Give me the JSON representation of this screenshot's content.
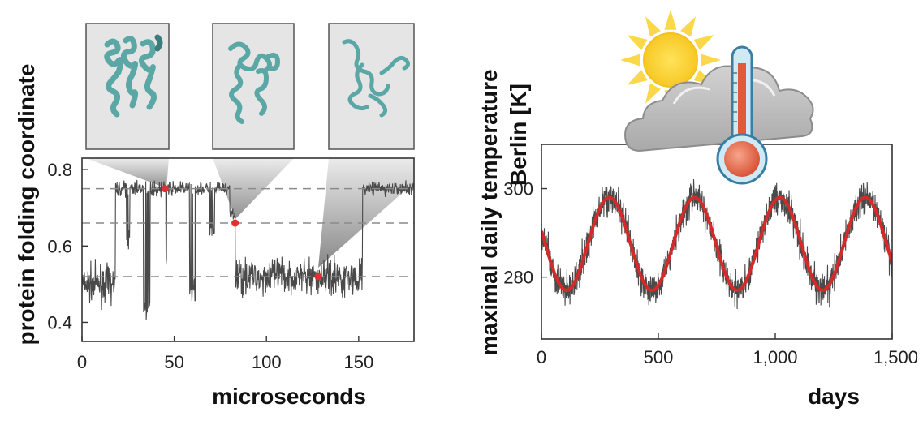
{
  "chart_data": [
    {
      "type": "line",
      "xlabel": "microseconds",
      "ylabel": "protein folding coordinate",
      "xlim": [
        0,
        180
      ],
      "ylim": [
        0.35,
        0.83
      ],
      "xticks": [
        "0",
        "50",
        "100",
        "150"
      ],
      "xtick_values": [
        0,
        50,
        100,
        150
      ],
      "yticks": [
        "0.4",
        "0.6",
        "0.8"
      ],
      "ytick_values": [
        0.4,
        0.6,
        0.8
      ],
      "reference_lines": [
        0.75,
        0.66,
        0.52
      ],
      "series": [
        {
          "color": "#4a4a4a",
          "segments": [
            {
              "x": [
                0,
                18
              ],
              "level": 0.5
            },
            {
              "x": [
                18,
                80
              ],
              "level": 0.75
            },
            {
              "x": [
                80,
                83
              ],
              "level": 0.68
            },
            {
              "x": [
                83,
                152
              ],
              "level": 0.52
            },
            {
              "x": [
                152,
                180
              ],
              "level": 0.75
            }
          ]
        }
      ],
      "highlight_points": [
        {
          "x": 45,
          "y": 0.75
        },
        {
          "x": 83,
          "y": 0.66
        },
        {
          "x": 128,
          "y": 0.52
        }
      ],
      "structure_images": 3,
      "grid": false
    },
    {
      "type": "line",
      "xlabel": "days",
      "ylabel": "maximal daily temperature Berlin [K]",
      "xlim": [
        0,
        1500
      ],
      "ylim": [
        266,
        310
      ],
      "xticks": [
        "0",
        "500",
        "1,000",
        "1,500"
      ],
      "xtick_values": [
        0,
        500,
        1000,
        1500
      ],
      "yticks": [
        "280",
        "300"
      ],
      "ytick_values": [
        280,
        300
      ],
      "series": [
        {
          "kind": "noisy daily measurement",
          "color": "#4a4a4a",
          "mean": 287.5,
          "amplitude": 10.5,
          "period_days": 365,
          "peak_day": 290
        },
        {
          "kind": "periodic fit",
          "color": "#d42a2a",
          "mean": 287.5,
          "amplitude": 10.5,
          "period_days": 365,
          "peak_day": 290
        }
      ],
      "grid": false
    }
  ],
  "icons": [
    "protein-structure-icon",
    "protein-structure-icon",
    "protein-structure-icon",
    "sun-icon",
    "cloud-icon",
    "thermometer-icon"
  ]
}
